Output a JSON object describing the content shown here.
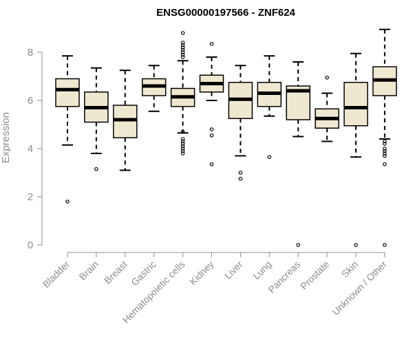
{
  "chart_data": {
    "type": "boxplot",
    "title": "ENSG00000197566 - ZNF624",
    "xlabel": "",
    "ylabel": "Expression",
    "ylim": [
      0,
      9
    ],
    "yticks": [
      0,
      2,
      4,
      6,
      8
    ],
    "grid": false,
    "box_color": "#efe8d0",
    "categories": [
      "Bladder",
      "Brain",
      "Breast",
      "Gastric",
      "Hematopoietic cells",
      "Kidney",
      "Liver",
      "Lung",
      "Pancreas",
      "Prostate",
      "Skin",
      "Unknown / Other"
    ],
    "boxes": [
      {
        "category": "Bladder",
        "whisker_low": 4.15,
        "q1": 5.75,
        "median": 6.45,
        "q3": 6.9,
        "whisker_high": 7.85,
        "outliers": [
          1.8
        ]
      },
      {
        "category": "Brain",
        "whisker_low": 3.8,
        "q1": 5.1,
        "median": 5.7,
        "q3": 6.35,
        "whisker_high": 7.35,
        "outliers": [
          3.15
        ]
      },
      {
        "category": "Breast",
        "whisker_low": 3.1,
        "q1": 4.45,
        "median": 5.2,
        "q3": 5.8,
        "whisker_high": 7.25,
        "outliers": []
      },
      {
        "category": "Gastric",
        "whisker_low": 5.55,
        "q1": 6.2,
        "median": 6.6,
        "q3": 6.9,
        "whisker_high": 7.45,
        "outliers": []
      },
      {
        "category": "Hematopoietic cells",
        "whisker_low": 4.65,
        "q1": 5.75,
        "median": 6.15,
        "q3": 6.5,
        "whisker_high": 7.65,
        "outliers": [
          3.8,
          3.9,
          4.0,
          4.1,
          4.2,
          4.3,
          4.4,
          4.7,
          7.8,
          7.9,
          8.0,
          8.1,
          8.2,
          8.3,
          8.4,
          8.8
        ]
      },
      {
        "category": "Kidney",
        "whisker_low": 6.0,
        "q1": 6.35,
        "median": 6.7,
        "q3": 7.05,
        "whisker_high": 7.8,
        "outliers": [
          3.35,
          4.55,
          4.8,
          8.35
        ]
      },
      {
        "category": "Liver",
        "whisker_low": 3.7,
        "q1": 5.25,
        "median": 6.05,
        "q3": 6.75,
        "whisker_high": 7.45,
        "outliers": [
          2.75,
          3.0
        ]
      },
      {
        "category": "Lung",
        "whisker_low": 5.35,
        "q1": 5.75,
        "median": 6.3,
        "q3": 6.75,
        "whisker_high": 7.85,
        "outliers": [
          3.65
        ]
      },
      {
        "category": "Pancreas",
        "whisker_low": 4.5,
        "q1": 5.2,
        "median": 6.4,
        "q3": 6.6,
        "whisker_high": 7.6,
        "outliers": [
          0.0
        ]
      },
      {
        "category": "Prostate",
        "whisker_low": 4.3,
        "q1": 4.85,
        "median": 5.25,
        "q3": 5.65,
        "whisker_high": 6.3,
        "outliers": [
          6.95
        ]
      },
      {
        "category": "Skin",
        "whisker_low": 3.65,
        "q1": 4.95,
        "median": 5.7,
        "q3": 6.75,
        "whisker_high": 7.95,
        "outliers": [
          0.0
        ]
      },
      {
        "category": "Unknown / Other",
        "whisker_low": 4.4,
        "q1": 6.2,
        "median": 6.85,
        "q3": 7.4,
        "whisker_high": 8.95,
        "outliers": [
          0.0,
          3.35,
          3.7,
          3.8,
          3.9,
          4.0,
          4.2,
          4.3
        ]
      }
    ]
  }
}
